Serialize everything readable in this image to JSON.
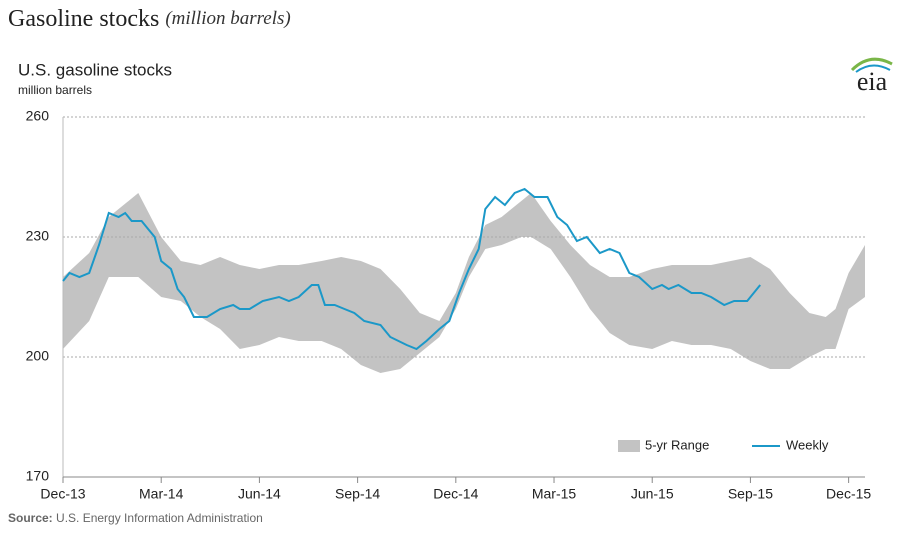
{
  "header": {
    "title": "Gasoline stocks",
    "subtitle": "(million barrels)"
  },
  "logo": "eia",
  "chart_data": {
    "type": "line",
    "title": "U.S. gasoline stocks",
    "subtitle": "million barrels",
    "ylim": [
      170,
      260
    ],
    "yticks": [
      170,
      200,
      230,
      260
    ],
    "xlim": [
      0,
      24.5
    ],
    "xticks": [
      {
        "value": 0,
        "label": "Dec-13"
      },
      {
        "value": 3,
        "label": "Mar-14"
      },
      {
        "value": 6,
        "label": "Jun-14"
      },
      {
        "value": 9,
        "label": "Sep-14"
      },
      {
        "value": 12,
        "label": "Dec-14"
      },
      {
        "value": 15,
        "label": "Mar-15"
      },
      {
        "value": 18,
        "label": "Jun-15"
      },
      {
        "value": 21,
        "label": "Sep-15"
      },
      {
        "value": 24,
        "label": "Dec-15"
      }
    ],
    "grid": true,
    "legend": "bottom-right",
    "band": {
      "name": "5-yr Range",
      "color": "#c3c3c3",
      "x": [
        0,
        0.8,
        1.4,
        2.3,
        3.0,
        3.6,
        4.2,
        4.8,
        5.4,
        6.0,
        6.6,
        7.2,
        7.9,
        8.5,
        9.1,
        9.7,
        10.3,
        10.9,
        11.5,
        12.0,
        12.4,
        12.9,
        13.4,
        14.0,
        14.3,
        14.9,
        15.5,
        16.1,
        16.7,
        17.3,
        18.0,
        18.6,
        19.2,
        19.8,
        20.4,
        21.0,
        21.6,
        22.2,
        22.8,
        23.3,
        23.6,
        24.0,
        24.5
      ],
      "low": [
        202,
        209,
        220,
        220,
        215,
        214,
        210,
        207,
        202,
        203,
        205,
        204,
        204,
        202,
        198,
        196,
        197,
        201,
        205,
        212,
        220,
        227,
        228,
        230,
        230,
        227,
        220,
        212,
        206,
        203,
        202,
        204,
        203,
        203,
        202,
        199,
        197,
        197,
        200,
        202,
        202,
        212,
        215
      ],
      "high": [
        220,
        226,
        235,
        241,
        230,
        224,
        223,
        225,
        223,
        222,
        223,
        223,
        224,
        225,
        224,
        222,
        217,
        211,
        209,
        216,
        225,
        233,
        235,
        239,
        241,
        234,
        228,
        223,
        220,
        220,
        222,
        223,
        223,
        223,
        224,
        225,
        222,
        216,
        211,
        210,
        212,
        221,
        228
      ]
    },
    "series": [
      {
        "name": "Weekly",
        "color": "#1b98c8",
        "x": [
          0,
          0.2,
          0.5,
          0.8,
          1.1,
          1.4,
          1.7,
          1.9,
          2.1,
          2.4,
          2.6,
          2.8,
          3.0,
          3.3,
          3.5,
          3.7,
          4.0,
          4.4,
          4.8,
          5.2,
          5.4,
          5.7,
          6.1,
          6.6,
          6.9,
          7.2,
          7.6,
          7.8,
          8.0,
          8.3,
          8.6,
          8.9,
          9.2,
          9.7,
          10.0,
          10.5,
          10.8,
          11.1,
          11.5,
          11.8,
          12.1,
          12.4,
          12.7,
          12.9,
          13.2,
          13.5,
          13.8,
          14.1,
          14.4,
          14.8,
          15.1,
          15.4,
          15.7,
          16.0,
          16.4,
          16.7,
          17.0,
          17.3,
          17.6,
          18.0,
          18.3,
          18.5,
          18.8,
          19.2,
          19.5,
          19.8,
          20.2,
          20.5,
          20.9,
          21.1,
          21.3
        ],
        "values": [
          219,
          221,
          220,
          221,
          228,
          236,
          235,
          236,
          234,
          234,
          232,
          230,
          224,
          222,
          217,
          215,
          210,
          210,
          212,
          213,
          212,
          212,
          214,
          215,
          214,
          215,
          218,
          218,
          213,
          213,
          212,
          211,
          209,
          208,
          205,
          203,
          202,
          204,
          207,
          209,
          216,
          222,
          227,
          237,
          240,
          238,
          241,
          242,
          240,
          240,
          235,
          233,
          229,
          230,
          226,
          227,
          226,
          221,
          220,
          217,
          218,
          217,
          218,
          216,
          216,
          215,
          213,
          214,
          214,
          216,
          218
        ]
      }
    ],
    "source_label": "Source:",
    "source": "U.S. Energy Information Administration"
  }
}
